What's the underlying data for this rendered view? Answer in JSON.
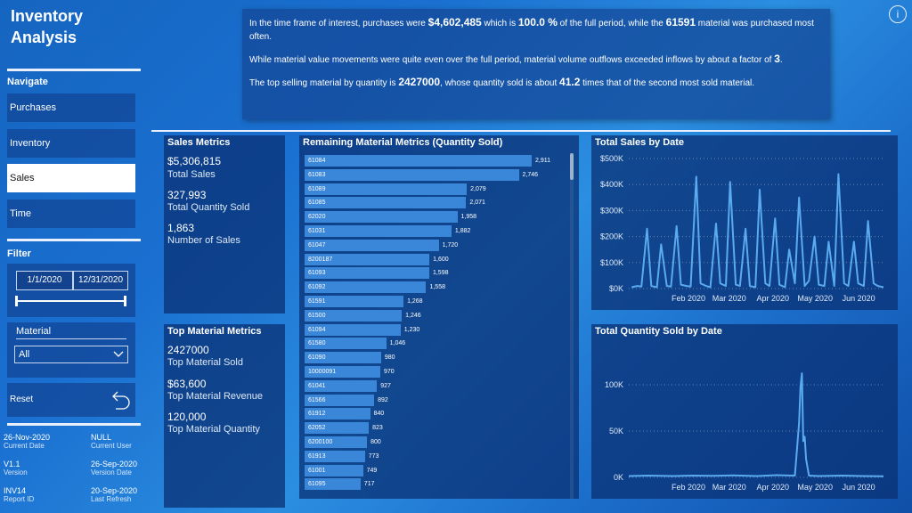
{
  "app": {
    "title": "Inventory Analysis"
  },
  "sidebar": {
    "navigate_label": "Navigate",
    "nav_items": [
      {
        "label": "Purchases",
        "active": false
      },
      {
        "label": "Inventory",
        "active": false
      },
      {
        "label": "Sales",
        "active": true
      },
      {
        "label": "Time",
        "active": false
      }
    ],
    "filter_label": "Filter",
    "date_start": "1/1/2020",
    "date_end": "12/31/2020",
    "material_label": "Material",
    "material_selected": "All",
    "reset_label": "Reset",
    "info": [
      {
        "value": "26-Nov-2020",
        "label": "Current Date"
      },
      {
        "value": "NULL",
        "label": "Current User"
      },
      {
        "value": "V1.1",
        "label": "Version"
      },
      {
        "value": "26-Sep-2020",
        "label": "Version Date"
      },
      {
        "value": "INV14",
        "label": "Report ID"
      },
      {
        "value": "20-Sep-2020",
        "label": "Last Refresh"
      }
    ]
  },
  "summary": {
    "p1_a": "In the time frame of interest, purchases were ",
    "p1_amount": "$4,602,485",
    "p1_b": " which is ",
    "p1_pct": "100.0 %",
    "p1_c": " of the full period, while the ",
    "p1_material": "61591",
    "p1_d": " material was purchased most often.",
    "p2_a": "While material value movements were quite even over the full period, material volume outflows exceeded inflows by about a factor of ",
    "p2_factor": "3",
    "p2_b": ".",
    "p3_a": "The top selling material by quantity is ",
    "p3_material": "2427000",
    "p3_b": ", whose quantity sold is about ",
    "p3_times": "41.2",
    "p3_c": " times that of the second most sold material."
  },
  "sales_metrics": {
    "title": "Sales Metrics",
    "items": [
      {
        "value": "$5,306,815",
        "label": "Total Sales"
      },
      {
        "value": "327,993",
        "label": "Total Quantity Sold"
      },
      {
        "value": "1,863",
        "label": "Number of Sales"
      }
    ]
  },
  "top_material_metrics": {
    "title": "Top Material Metrics",
    "items": [
      {
        "value": "2427000",
        "label": "Top Material Sold"
      },
      {
        "value": "$63,600",
        "label": "Top Material Revenue"
      },
      {
        "value": "120,000",
        "label": "Top Material Quantity"
      }
    ]
  },
  "remaining_title": "Remaining Material Metrics (Quantity Sold)",
  "total_sales_title": "Total Sales by Date",
  "total_qty_title": "Total Quantity Sold by Date",
  "colors": {
    "bar": "#3a86d8",
    "line": "#5aaaf0"
  },
  "chart_data": [
    {
      "type": "bar",
      "orientation": "horizontal",
      "title": "Remaining Material Metrics (Quantity Sold)",
      "categories": [
        "61084",
        "61083",
        "61089",
        "61085",
        "62020",
        "61031",
        "61047",
        "8200187",
        "61093",
        "61092",
        "61591",
        "61500",
        "61094",
        "61580",
        "61090",
        "10000091",
        "61041",
        "61566",
        "61912",
        "62052",
        "6200100",
        "61913",
        "61001",
        "61095"
      ],
      "values": [
        2911,
        2746,
        2079,
        2071,
        1958,
        1882,
        1720,
        1600,
        1598,
        1558,
        1268,
        1246,
        1230,
        1046,
        980,
        970,
        927,
        892,
        840,
        823,
        800,
        773,
        749,
        717
      ],
      "labels": [
        "2,911",
        "2,746",
        "2,079",
        "2,071",
        "1,958",
        "1,882",
        "1,720",
        "1,600",
        "1,598",
        "1,558",
        "1,268",
        "1,246",
        "1,230",
        "1,046",
        "980",
        "970",
        "927",
        "892",
        "840",
        "823",
        "800",
        "773",
        "749",
        "717"
      ]
    },
    {
      "type": "line",
      "title": "Total Sales by Date",
      "x_ticks": [
        "Feb 2020",
        "Mar 2020",
        "Apr 2020",
        "May 2020",
        "Jun 2020"
      ],
      "y_ticks": [
        "$500K",
        "$400K",
        "$300K",
        "$200K",
        "$100K",
        "$0K"
      ],
      "ylim": [
        0,
        500000
      ],
      "xlim": [
        "2020-01-01",
        "2020-06-30"
      ],
      "x": [
        "2020-01-03",
        "2020-01-07",
        "2020-01-10",
        "2020-01-14",
        "2020-01-17",
        "2020-01-21",
        "2020-01-24",
        "2020-01-28",
        "2020-01-31",
        "2020-02-04",
        "2020-02-07",
        "2020-02-11",
        "2020-02-14",
        "2020-02-18",
        "2020-02-21",
        "2020-02-25",
        "2020-02-28",
        "2020-03-03",
        "2020-03-06",
        "2020-03-10",
        "2020-03-13",
        "2020-03-17",
        "2020-03-20",
        "2020-03-24",
        "2020-03-27",
        "2020-03-31",
        "2020-04-03",
        "2020-04-07",
        "2020-04-10",
        "2020-04-14",
        "2020-04-17",
        "2020-04-21",
        "2020-04-24",
        "2020-04-28",
        "2020-05-01",
        "2020-05-05",
        "2020-05-08",
        "2020-05-12",
        "2020-05-15",
        "2020-05-19",
        "2020-05-22",
        "2020-05-26",
        "2020-05-29",
        "2020-06-02",
        "2020-06-05",
        "2020-06-09",
        "2020-06-12",
        "2020-06-16",
        "2020-06-19",
        "2020-06-23",
        "2020-06-26",
        "2020-06-30"
      ],
      "y": [
        5000,
        10000,
        8000,
        230000,
        10000,
        5000,
        170000,
        10000,
        8000,
        240000,
        15000,
        10000,
        8000,
        430000,
        20000,
        10000,
        5000,
        250000,
        20000,
        10000,
        410000,
        15000,
        10000,
        230000,
        10000,
        5000,
        380000,
        20000,
        10000,
        270000,
        15000,
        5000,
        150000,
        20000,
        350000,
        10000,
        30000,
        200000,
        15000,
        10000,
        180000,
        10000,
        440000,
        20000,
        10000,
        180000,
        20000,
        10000,
        260000,
        20000,
        10000,
        5000
      ]
    },
    {
      "type": "line",
      "title": "Total Quantity Sold by Date",
      "x_ticks": [
        "Feb 2020",
        "Mar 2020",
        "Apr 2020",
        "May 2020",
        "Jun 2020"
      ],
      "y_ticks": [
        "100K",
        "50K",
        "0K"
      ],
      "ylim": [
        0,
        120000
      ],
      "xlim": [
        "2020-01-01",
        "2020-06-30"
      ],
      "x": [
        "2020-01-01",
        "2020-01-15",
        "2020-02-01",
        "2020-02-15",
        "2020-03-01",
        "2020-03-15",
        "2020-04-01",
        "2020-04-15",
        "2020-04-28",
        "2020-05-01",
        "2020-05-02",
        "2020-05-03",
        "2020-05-04",
        "2020-05-05",
        "2020-05-06",
        "2020-05-08",
        "2020-05-15",
        "2020-06-01",
        "2020-06-15",
        "2020-06-30"
      ],
      "y": [
        1500,
        2000,
        1500,
        2000,
        1800,
        2200,
        1500,
        2500,
        2000,
        60000,
        100000,
        115000,
        40000,
        45000,
        20000,
        2000,
        1500,
        2000,
        1500,
        1200
      ]
    }
  ]
}
